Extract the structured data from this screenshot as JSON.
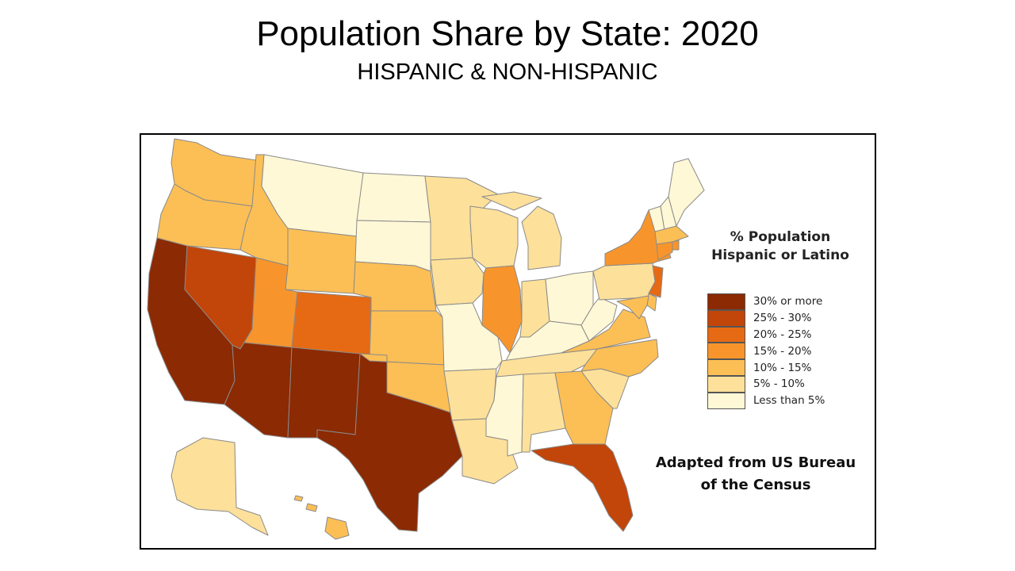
{
  "header": {
    "title": "Population Share by State: 2020",
    "subtitle": "HISPANIC & NON-HISPANIC"
  },
  "legend": {
    "title": "% Population Hispanic or Latino",
    "items": [
      {
        "label": "30% or more",
        "color": "#8b2a03"
      },
      {
        "label": "25% - 30%",
        "color": "#c2450a"
      },
      {
        "label": "20% - 25%",
        "color": "#e66a14"
      },
      {
        "label": "15% - 20%",
        "color": "#f7952c"
      },
      {
        "label": "10% - 15%",
        "color": "#fcbf55"
      },
      {
        "label": "5% - 10%",
        "color": "#fde09a"
      },
      {
        "label": "Less than 5%",
        "color": "#fff8d6"
      }
    ]
  },
  "source_note": "Adapted from US Bureau of the Census",
  "states": [
    {
      "name": "WA",
      "class": 4
    },
    {
      "name": "OR",
      "class": 4
    },
    {
      "name": "CA",
      "class": 0
    },
    {
      "name": "NV",
      "class": 1
    },
    {
      "name": "ID",
      "class": 4
    },
    {
      "name": "MT",
      "class": 6
    },
    {
      "name": "WY",
      "class": 4
    },
    {
      "name": "UT",
      "class": 3
    },
    {
      "name": "AZ",
      "class": 0
    },
    {
      "name": "CO",
      "class": 2
    },
    {
      "name": "NM",
      "class": 0
    },
    {
      "name": "TX",
      "class": 0
    },
    {
      "name": "ND",
      "class": 6
    },
    {
      "name": "SD",
      "class": 6
    },
    {
      "name": "NE",
      "class": 4
    },
    {
      "name": "KS",
      "class": 4
    },
    {
      "name": "OK",
      "class": 4
    },
    {
      "name": "MN",
      "class": 5
    },
    {
      "name": "IA",
      "class": 5
    },
    {
      "name": "MO",
      "class": 6
    },
    {
      "name": "AR",
      "class": 5
    },
    {
      "name": "LA",
      "class": 5
    },
    {
      "name": "WI",
      "class": 5
    },
    {
      "name": "IL",
      "class": 3
    },
    {
      "name": "MI",
      "class": 5
    },
    {
      "name": "IN",
      "class": 5
    },
    {
      "name": "OH",
      "class": 6
    },
    {
      "name": "KY",
      "class": 6
    },
    {
      "name": "TN",
      "class": 5
    },
    {
      "name": "MS",
      "class": 6
    },
    {
      "name": "AL",
      "class": 5
    },
    {
      "name": "GA",
      "class": 4
    },
    {
      "name": "FL",
      "class": 1
    },
    {
      "name": "SC",
      "class": 5
    },
    {
      "name": "NC",
      "class": 4
    },
    {
      "name": "VA",
      "class": 4
    },
    {
      "name": "WV",
      "class": 6
    },
    {
      "name": "PA",
      "class": 5
    },
    {
      "name": "NY",
      "class": 3
    },
    {
      "name": "VT",
      "class": 6
    },
    {
      "name": "NH",
      "class": 6
    },
    {
      "name": "ME",
      "class": 6
    },
    {
      "name": "MA",
      "class": 4
    },
    {
      "name": "RI",
      "class": 3
    },
    {
      "name": "CT",
      "class": 3
    },
    {
      "name": "NJ",
      "class": 2
    },
    {
      "name": "DE",
      "class": 4
    },
    {
      "name": "MD",
      "class": 4
    },
    {
      "name": "AK",
      "class": 5
    },
    {
      "name": "HI",
      "class": 4
    }
  ]
}
